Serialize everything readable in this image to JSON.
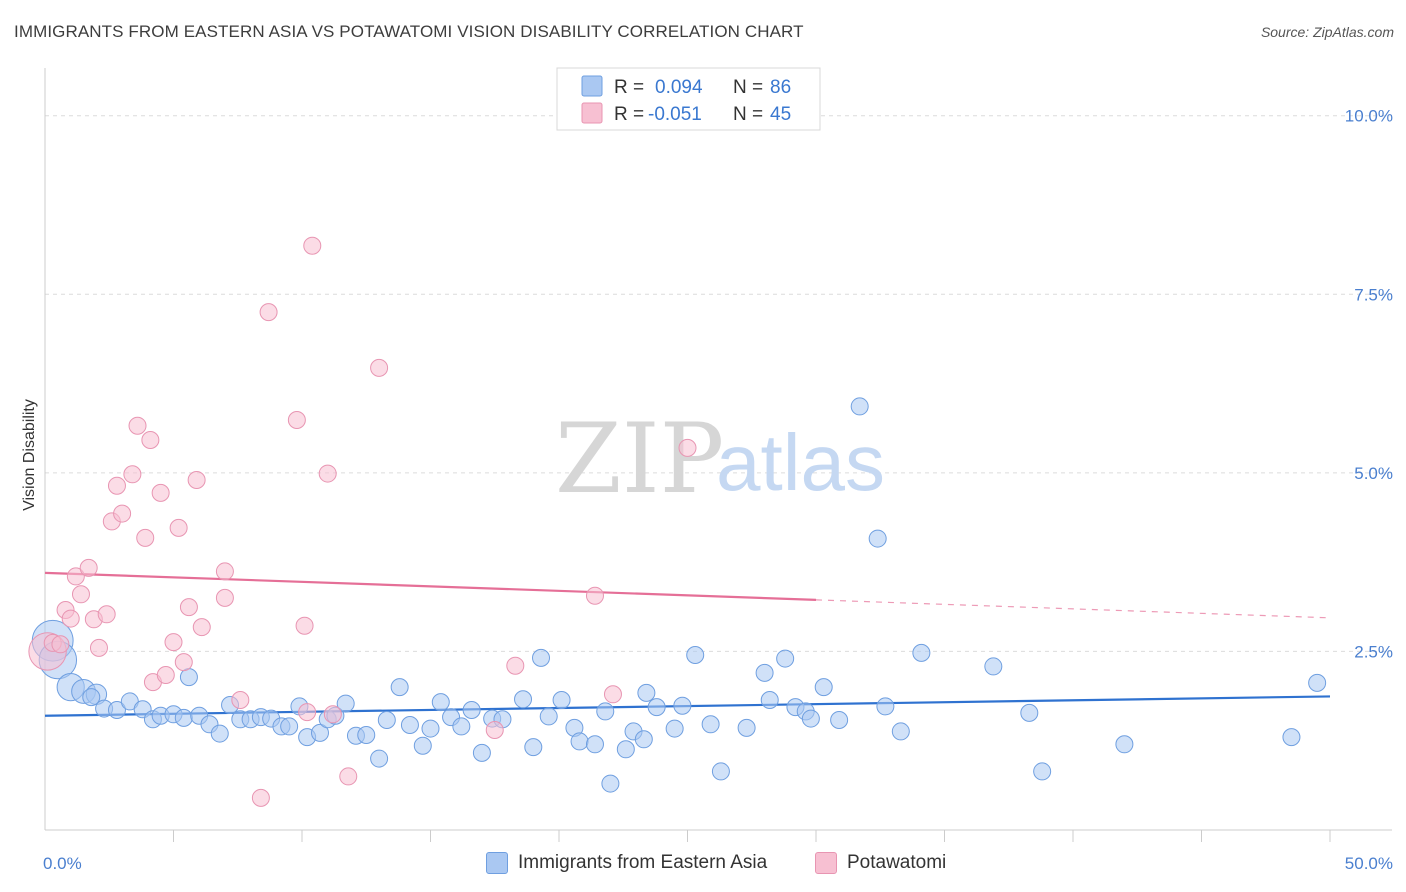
{
  "header": {
    "title": "IMMIGRANTS FROM EASTERN ASIA VS POTAWATOMI VISION DISABILITY CORRELATION CHART",
    "source": "Source: ZipAtlas.com"
  },
  "watermark": {
    "zip": "ZIP",
    "atlas": "atlas"
  },
  "colors": {
    "blue_fill": "#aac8f2",
    "blue_stroke": "#6f9fe0",
    "blue_line": "#2f72d0",
    "pink_fill": "#f7c0d2",
    "pink_stroke": "#e895b2",
    "pink_line": "#e56f97",
    "tick_text": "#4a7fcf",
    "grid": "#dcdcdc"
  },
  "legend": {
    "rows": [
      {
        "r_label": "R = ",
        "r_value": "0.094",
        "n_label": "N = ",
        "n_value": "86",
        "series": "blue"
      },
      {
        "r_label": "R = ",
        "r_value": "-0.051",
        "n_label": "N = ",
        "n_value": "45",
        "series": "pink"
      }
    ]
  },
  "chart_data": {
    "type": "scatter",
    "title": "IMMIGRANTS FROM EASTERN ASIA VS POTAWATOMI VISION DISABILITY CORRELATION CHART",
    "xlabel": "",
    "ylabel": "Vision Disability",
    "xlim": [
      0,
      50
    ],
    "ylim": [
      0,
      10.5
    ],
    "x_tick_labels": [
      "0.0%",
      "50.0%"
    ],
    "y_ticks": [
      2.5,
      5.0,
      7.5,
      10.0
    ],
    "y_tick_labels": [
      "2.5%",
      "5.0%",
      "7.5%",
      "10.0%"
    ],
    "grid": true,
    "legend_placement": "bottom",
    "series": [
      {
        "name": "Immigrants from Eastern Asia",
        "color": "blue",
        "R": 0.094,
        "N": 86,
        "trend": {
          "x0": 0,
          "y0": 1.6,
          "x1": 50,
          "y1": 1.87,
          "solid_to": 50
        },
        "points": [
          [
            0.3,
            2.65,
            2.4
          ],
          [
            0.5,
            2.38,
            2.2
          ],
          [
            1.0,
            2.0,
            1.6
          ],
          [
            1.5,
            1.94,
            1.4
          ],
          [
            2.0,
            1.9,
            1.2
          ],
          [
            1.8,
            1.86,
            1.0
          ],
          [
            2.3,
            1.7,
            1.0
          ],
          [
            2.8,
            1.68,
            1.0
          ],
          [
            3.3,
            1.8,
            1.0
          ],
          [
            3.8,
            1.69,
            1.0
          ],
          [
            4.2,
            1.55,
            1.0
          ],
          [
            4.5,
            1.6,
            1.0
          ],
          [
            5.0,
            1.62,
            1.0
          ],
          [
            5.4,
            1.57,
            1.0
          ],
          [
            5.6,
            2.14,
            1.0
          ],
          [
            6.0,
            1.6,
            1.0
          ],
          [
            6.4,
            1.48,
            1.0
          ],
          [
            6.8,
            1.35,
            1.0
          ],
          [
            7.2,
            1.75,
            1.0
          ],
          [
            7.6,
            1.55,
            1.0
          ],
          [
            8.0,
            1.55,
            1.0
          ],
          [
            8.4,
            1.58,
            1.0
          ],
          [
            8.8,
            1.56,
            1.0
          ],
          [
            9.2,
            1.45,
            1.0
          ],
          [
            9.5,
            1.45,
            1.0
          ],
          [
            9.9,
            1.73,
            1.0
          ],
          [
            10.2,
            1.3,
            1.0
          ],
          [
            10.7,
            1.36,
            1.0
          ],
          [
            11.0,
            1.55,
            1.0
          ],
          [
            11.3,
            1.6,
            1.0
          ],
          [
            11.7,
            1.77,
            1.0
          ],
          [
            12.1,
            1.32,
            1.0
          ],
          [
            12.5,
            1.33,
            1.0
          ],
          [
            13.0,
            1.0,
            1.0
          ],
          [
            13.3,
            1.54,
            1.0
          ],
          [
            13.8,
            2.0,
            1.0
          ],
          [
            14.2,
            1.47,
            1.0
          ],
          [
            14.7,
            1.18,
            1.0
          ],
          [
            15.0,
            1.42,
            1.0
          ],
          [
            15.4,
            1.79,
            1.0
          ],
          [
            15.8,
            1.58,
            1.0
          ],
          [
            16.2,
            1.45,
            1.0
          ],
          [
            16.6,
            1.68,
            1.0
          ],
          [
            17.0,
            1.08,
            1.0
          ],
          [
            17.4,
            1.56,
            1.0
          ],
          [
            17.8,
            1.55,
            1.0
          ],
          [
            18.6,
            1.83,
            1.0
          ],
          [
            19.0,
            1.16,
            1.0
          ],
          [
            19.3,
            2.41,
            1.0
          ],
          [
            19.6,
            1.59,
            1.0
          ],
          [
            20.1,
            1.82,
            1.0
          ],
          [
            20.6,
            1.43,
            1.0
          ],
          [
            20.8,
            1.24,
            1.0
          ],
          [
            21.4,
            1.2,
            1.0
          ],
          [
            21.8,
            1.66,
            1.0
          ],
          [
            22.0,
            0.65,
            1.0
          ],
          [
            22.6,
            1.13,
            1.0
          ],
          [
            22.9,
            1.38,
            1.0
          ],
          [
            23.3,
            1.27,
            1.0
          ],
          [
            23.4,
            1.92,
            1.0
          ],
          [
            23.8,
            1.72,
            1.0
          ],
          [
            24.5,
            1.42,
            1.0
          ],
          [
            24.8,
            1.74,
            1.0
          ],
          [
            25.3,
            2.45,
            1.0
          ],
          [
            25.9,
            1.48,
            1.0
          ],
          [
            26.3,
            0.82,
            1.0
          ],
          [
            27.3,
            1.43,
            1.0
          ],
          [
            28.0,
            2.2,
            1.0
          ],
          [
            28.2,
            1.82,
            1.0
          ],
          [
            28.8,
            2.4,
            1.0
          ],
          [
            29.2,
            1.72,
            1.0
          ],
          [
            29.6,
            1.66,
            1.0
          ],
          [
            29.8,
            1.56,
            1.0
          ],
          [
            30.3,
            2.0,
            1.0
          ],
          [
            30.9,
            1.54,
            1.0
          ],
          [
            31.7,
            5.93,
            1.0
          ],
          [
            32.4,
            4.08,
            1.0
          ],
          [
            32.7,
            1.73,
            1.0
          ],
          [
            33.3,
            1.38,
            1.0
          ],
          [
            34.1,
            2.48,
            1.0
          ],
          [
            36.9,
            2.29,
            1.0
          ],
          [
            38.3,
            1.64,
            1.0
          ],
          [
            38.8,
            0.82,
            1.0
          ],
          [
            42.0,
            1.2,
            1.0
          ],
          [
            48.5,
            1.3,
            1.0
          ],
          [
            49.5,
            2.06,
            1.0
          ]
        ]
      },
      {
        "name": "Potawatomi",
        "color": "pink",
        "R": -0.051,
        "N": 45,
        "trend": {
          "x0": 0,
          "y0": 3.6,
          "x1": 50,
          "y1": 2.97,
          "solid_to": 30
        },
        "points": [
          [
            0.1,
            2.5,
            2.2
          ],
          [
            0.3,
            2.62,
            1.0
          ],
          [
            0.6,
            2.6,
            1.0
          ],
          [
            0.8,
            3.08,
            1.0
          ],
          [
            1.0,
            2.96,
            1.0
          ],
          [
            1.2,
            3.55,
            1.0
          ],
          [
            1.4,
            3.3,
            1.0
          ],
          [
            1.7,
            3.67,
            1.0
          ],
          [
            1.9,
            2.95,
            1.0
          ],
          [
            2.1,
            2.55,
            1.0
          ],
          [
            2.4,
            3.02,
            1.0
          ],
          [
            2.6,
            4.32,
            1.0
          ],
          [
            2.8,
            4.82,
            1.0
          ],
          [
            3.0,
            4.43,
            1.0
          ],
          [
            3.4,
            4.98,
            1.0
          ],
          [
            3.6,
            5.66,
            1.0
          ],
          [
            3.9,
            4.09,
            1.0
          ],
          [
            4.1,
            5.46,
            1.0
          ],
          [
            4.2,
            2.07,
            1.0
          ],
          [
            4.5,
            4.72,
            1.0
          ],
          [
            4.7,
            2.17,
            1.0
          ],
          [
            5.0,
            2.63,
            1.0
          ],
          [
            5.2,
            4.23,
            1.0
          ],
          [
            5.4,
            2.35,
            1.0
          ],
          [
            5.6,
            3.12,
            1.0
          ],
          [
            5.9,
            4.9,
            1.0
          ],
          [
            6.1,
            2.84,
            1.0
          ],
          [
            7.0,
            3.25,
            1.0
          ],
          [
            7.6,
            1.82,
            1.0
          ],
          [
            7.0,
            3.62,
            1.0
          ],
          [
            8.4,
            0.45,
            1.0
          ],
          [
            8.7,
            7.25,
            1.0
          ],
          [
            9.8,
            5.74,
            1.0
          ],
          [
            10.1,
            2.86,
            1.0
          ],
          [
            10.2,
            1.65,
            1.0
          ],
          [
            10.4,
            8.18,
            1.0
          ],
          [
            11.0,
            4.99,
            1.0
          ],
          [
            11.2,
            1.62,
            1.0
          ],
          [
            11.8,
            0.75,
            1.0
          ],
          [
            13.0,
            6.47,
            1.0
          ],
          [
            17.5,
            1.4,
            1.0
          ],
          [
            18.3,
            2.3,
            1.0
          ],
          [
            21.4,
            3.28,
            1.0
          ],
          [
            22.1,
            1.9,
            1.0
          ],
          [
            25.0,
            5.35,
            1.0
          ]
        ]
      }
    ]
  },
  "bottom_legend": {
    "items": [
      {
        "label": "Immigrants from Eastern Asia",
        "series": "blue"
      },
      {
        "label": "Potawatomi",
        "series": "pink"
      }
    ]
  }
}
